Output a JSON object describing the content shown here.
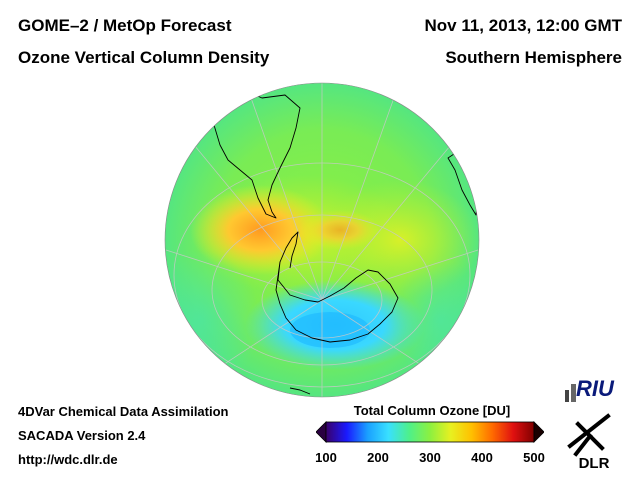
{
  "header": {
    "title_left_1": "GOME–2 / MetOp Forecast",
    "title_left_2": "Ozone Vertical Column Density",
    "title_right_1": "Nov 11, 2013, 12:00 GMT",
    "title_right_2": "Southern Hemisphere"
  },
  "footer": {
    "line_1": "4DVar Chemical Data Assimilation",
    "line_2": "SACADA Version 2.4",
    "line_3": "http://wdc.dlr.de"
  },
  "colorbar": {
    "title": "Total Column Ozone [DU]",
    "min": 100,
    "max": 500,
    "ticks": [
      "100",
      "200",
      "300",
      "400",
      "500"
    ],
    "colors": [
      "#3a006a",
      "#1a1aff",
      "#1aa0ff",
      "#39e0ff",
      "#4ef08a",
      "#8cf040",
      "#e8f020",
      "#ffc000",
      "#ff6a00",
      "#e01010",
      "#800000"
    ],
    "under_color": "#2a0040",
    "over_color": "#1a0000"
  },
  "map": {
    "projection": "orthographic",
    "hemisphere": "south"
  },
  "logos": {
    "riu_text": "RIU",
    "dlr_text": "DLR"
  }
}
